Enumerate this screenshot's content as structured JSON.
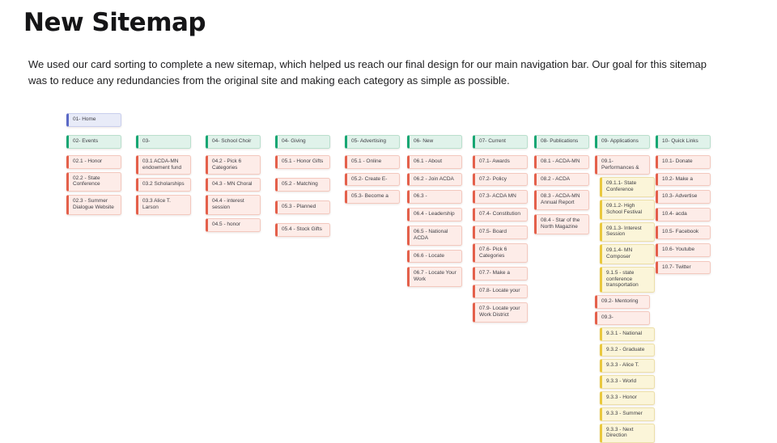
{
  "page": {
    "title": "New Sitemap",
    "description": "We used our card sorting to complete a new sitemap, which helped us reach our final design for our main navigation bar. Our goal for this sitemap was to reduce any redundancies from the original site and making each category as simple as possible."
  },
  "colors": {
    "home_accent": "#5a69c6",
    "home_bg": "#e8ebf8",
    "home_border": "#c9cfee",
    "category_accent": "#17a673",
    "category_bg": "#e0f2ea",
    "category_border": "#b9dfcd",
    "page_accent": "#e4604b",
    "page_bg": "#fdece8",
    "page_border": "#f3c8be",
    "sub_accent": "#e9c83e",
    "sub_bg": "#fbf5d9",
    "sub_border": "#ecdfa8"
  },
  "sitemap": {
    "home": {
      "label": "01- Home",
      "type": "home"
    },
    "columns": [
      {
        "header": "02- Events",
        "cards": [
          {
            "label": "02.1 - Honor",
            "type": "page"
          },
          {
            "label": "02.2 - State Conference",
            "type": "page"
          },
          {
            "label": "02.3 - Summer Dialogue Website",
            "type": "page"
          }
        ]
      },
      {
        "header": "03-",
        "cards": [
          {
            "label": "03.1 ACDA-MN endowment fund",
            "type": "page"
          },
          {
            "label": "03.2 Scholarships",
            "type": "page"
          },
          {
            "label": "03.3 Alice T. Larson",
            "type": "page"
          }
        ]
      },
      {
        "header": "04- School Choir",
        "cards": [
          {
            "label": "04.2 - Pick 6 Categories",
            "type": "page"
          },
          {
            "label": "04.3 - MN Choral",
            "type": "page"
          },
          {
            "label": "04.4 - interest session",
            "type": "page"
          },
          {
            "label": "04.5 - honor",
            "type": "page"
          }
        ]
      },
      {
        "header": "04- Giving",
        "cards": [
          {
            "label": "05.1 - Honor Gifts",
            "type": "page"
          },
          {
            "label": "05.2 - Matching",
            "type": "page"
          },
          {
            "label": "05.3 - Planned",
            "type": "page"
          },
          {
            "label": "05.4 - Stock Gifts",
            "type": "page"
          }
        ]
      },
      {
        "header": "05- Advertising",
        "cards": [
          {
            "label": "05.1 - Online",
            "type": "page"
          },
          {
            "label": "05.2- Create E-",
            "type": "page"
          },
          {
            "label": "05.3- Become a",
            "type": "page"
          }
        ]
      },
      {
        "header": "06- New",
        "cards": [
          {
            "label": "06.1 - About",
            "type": "page"
          },
          {
            "label": "06.2 - Join ACDA",
            "type": "page"
          },
          {
            "label": "06.3 -",
            "type": "page"
          },
          {
            "label": "06.4 - Leadership",
            "type": "page"
          },
          {
            "label": "06.5 - National ACDA",
            "type": "page"
          },
          {
            "label": "06.6 - Locate",
            "type": "page"
          },
          {
            "label": "06.7 - Locate Your Work",
            "type": "page"
          }
        ]
      },
      {
        "header": "07- Current",
        "cards": [
          {
            "label": "07.1- Awards",
            "type": "page"
          },
          {
            "label": "07.2- Policy",
            "type": "page"
          },
          {
            "label": "07.3- ACDA MN",
            "type": "page"
          },
          {
            "label": "07.4- Constitution",
            "type": "page"
          },
          {
            "label": "07.5- Board",
            "type": "page"
          },
          {
            "label": "07.6- Pick 6 Categories",
            "type": "page"
          },
          {
            "label": "07.7- Make a",
            "type": "page"
          },
          {
            "label": "07.8- Locate your",
            "type": "page"
          },
          {
            "label": "07.9- Locate your Work District",
            "type": "page"
          }
        ]
      },
      {
        "header": "08- Publications",
        "cards": [
          {
            "label": "08.1 - ACDA-MN",
            "type": "page"
          },
          {
            "label": "08.2 - ACDA",
            "type": "page"
          },
          {
            "label": "08.3 - ACDA-MN Annual Report",
            "type": "page"
          },
          {
            "label": "08.4 - Star of the North Magazine",
            "type": "page"
          }
        ]
      },
      {
        "header": "09- Applications",
        "cards": [
          {
            "label": "09.1- Performances &",
            "type": "page"
          },
          {
            "label": "09.1.1- State Conference",
            "type": "sub"
          },
          {
            "label": "09.1.2- High School Festival",
            "type": "sub"
          },
          {
            "label": "09.1.3- Interest Session",
            "type": "sub"
          },
          {
            "label": "09.1.4- MN Composer",
            "type": "sub"
          },
          {
            "label": "9.1.5 - state conference transportation",
            "type": "sub"
          },
          {
            "label": "09.2- Mentoring",
            "type": "page"
          },
          {
            "label": "09.3-",
            "type": "page"
          },
          {
            "label": "9.3.1 - National",
            "type": "sub"
          },
          {
            "label": "9.3.2 - Graduate",
            "type": "sub"
          },
          {
            "label": "9.3.3 - Alice T.",
            "type": "sub"
          },
          {
            "label": "9.3.3 - World",
            "type": "sub"
          },
          {
            "label": "9.3.3 - Honor",
            "type": "sub"
          },
          {
            "label": "9.3.3 - Summer",
            "type": "sub"
          },
          {
            "label": "9.3.3 - Next Direction",
            "type": "sub"
          }
        ]
      },
      {
        "header": "10- Quick Links",
        "cards": [
          {
            "label": "10.1- Donate",
            "type": "page"
          },
          {
            "label": "10.2- Make a",
            "type": "page"
          },
          {
            "label": "10.3- Advertise",
            "type": "page"
          },
          {
            "label": "10.4- acda",
            "type": "page"
          },
          {
            "label": "10.5- Facebook",
            "type": "page"
          },
          {
            "label": "10.6- Youtube",
            "type": "page"
          },
          {
            "label": "10.7- Twitter",
            "type": "page"
          }
        ]
      }
    ]
  }
}
